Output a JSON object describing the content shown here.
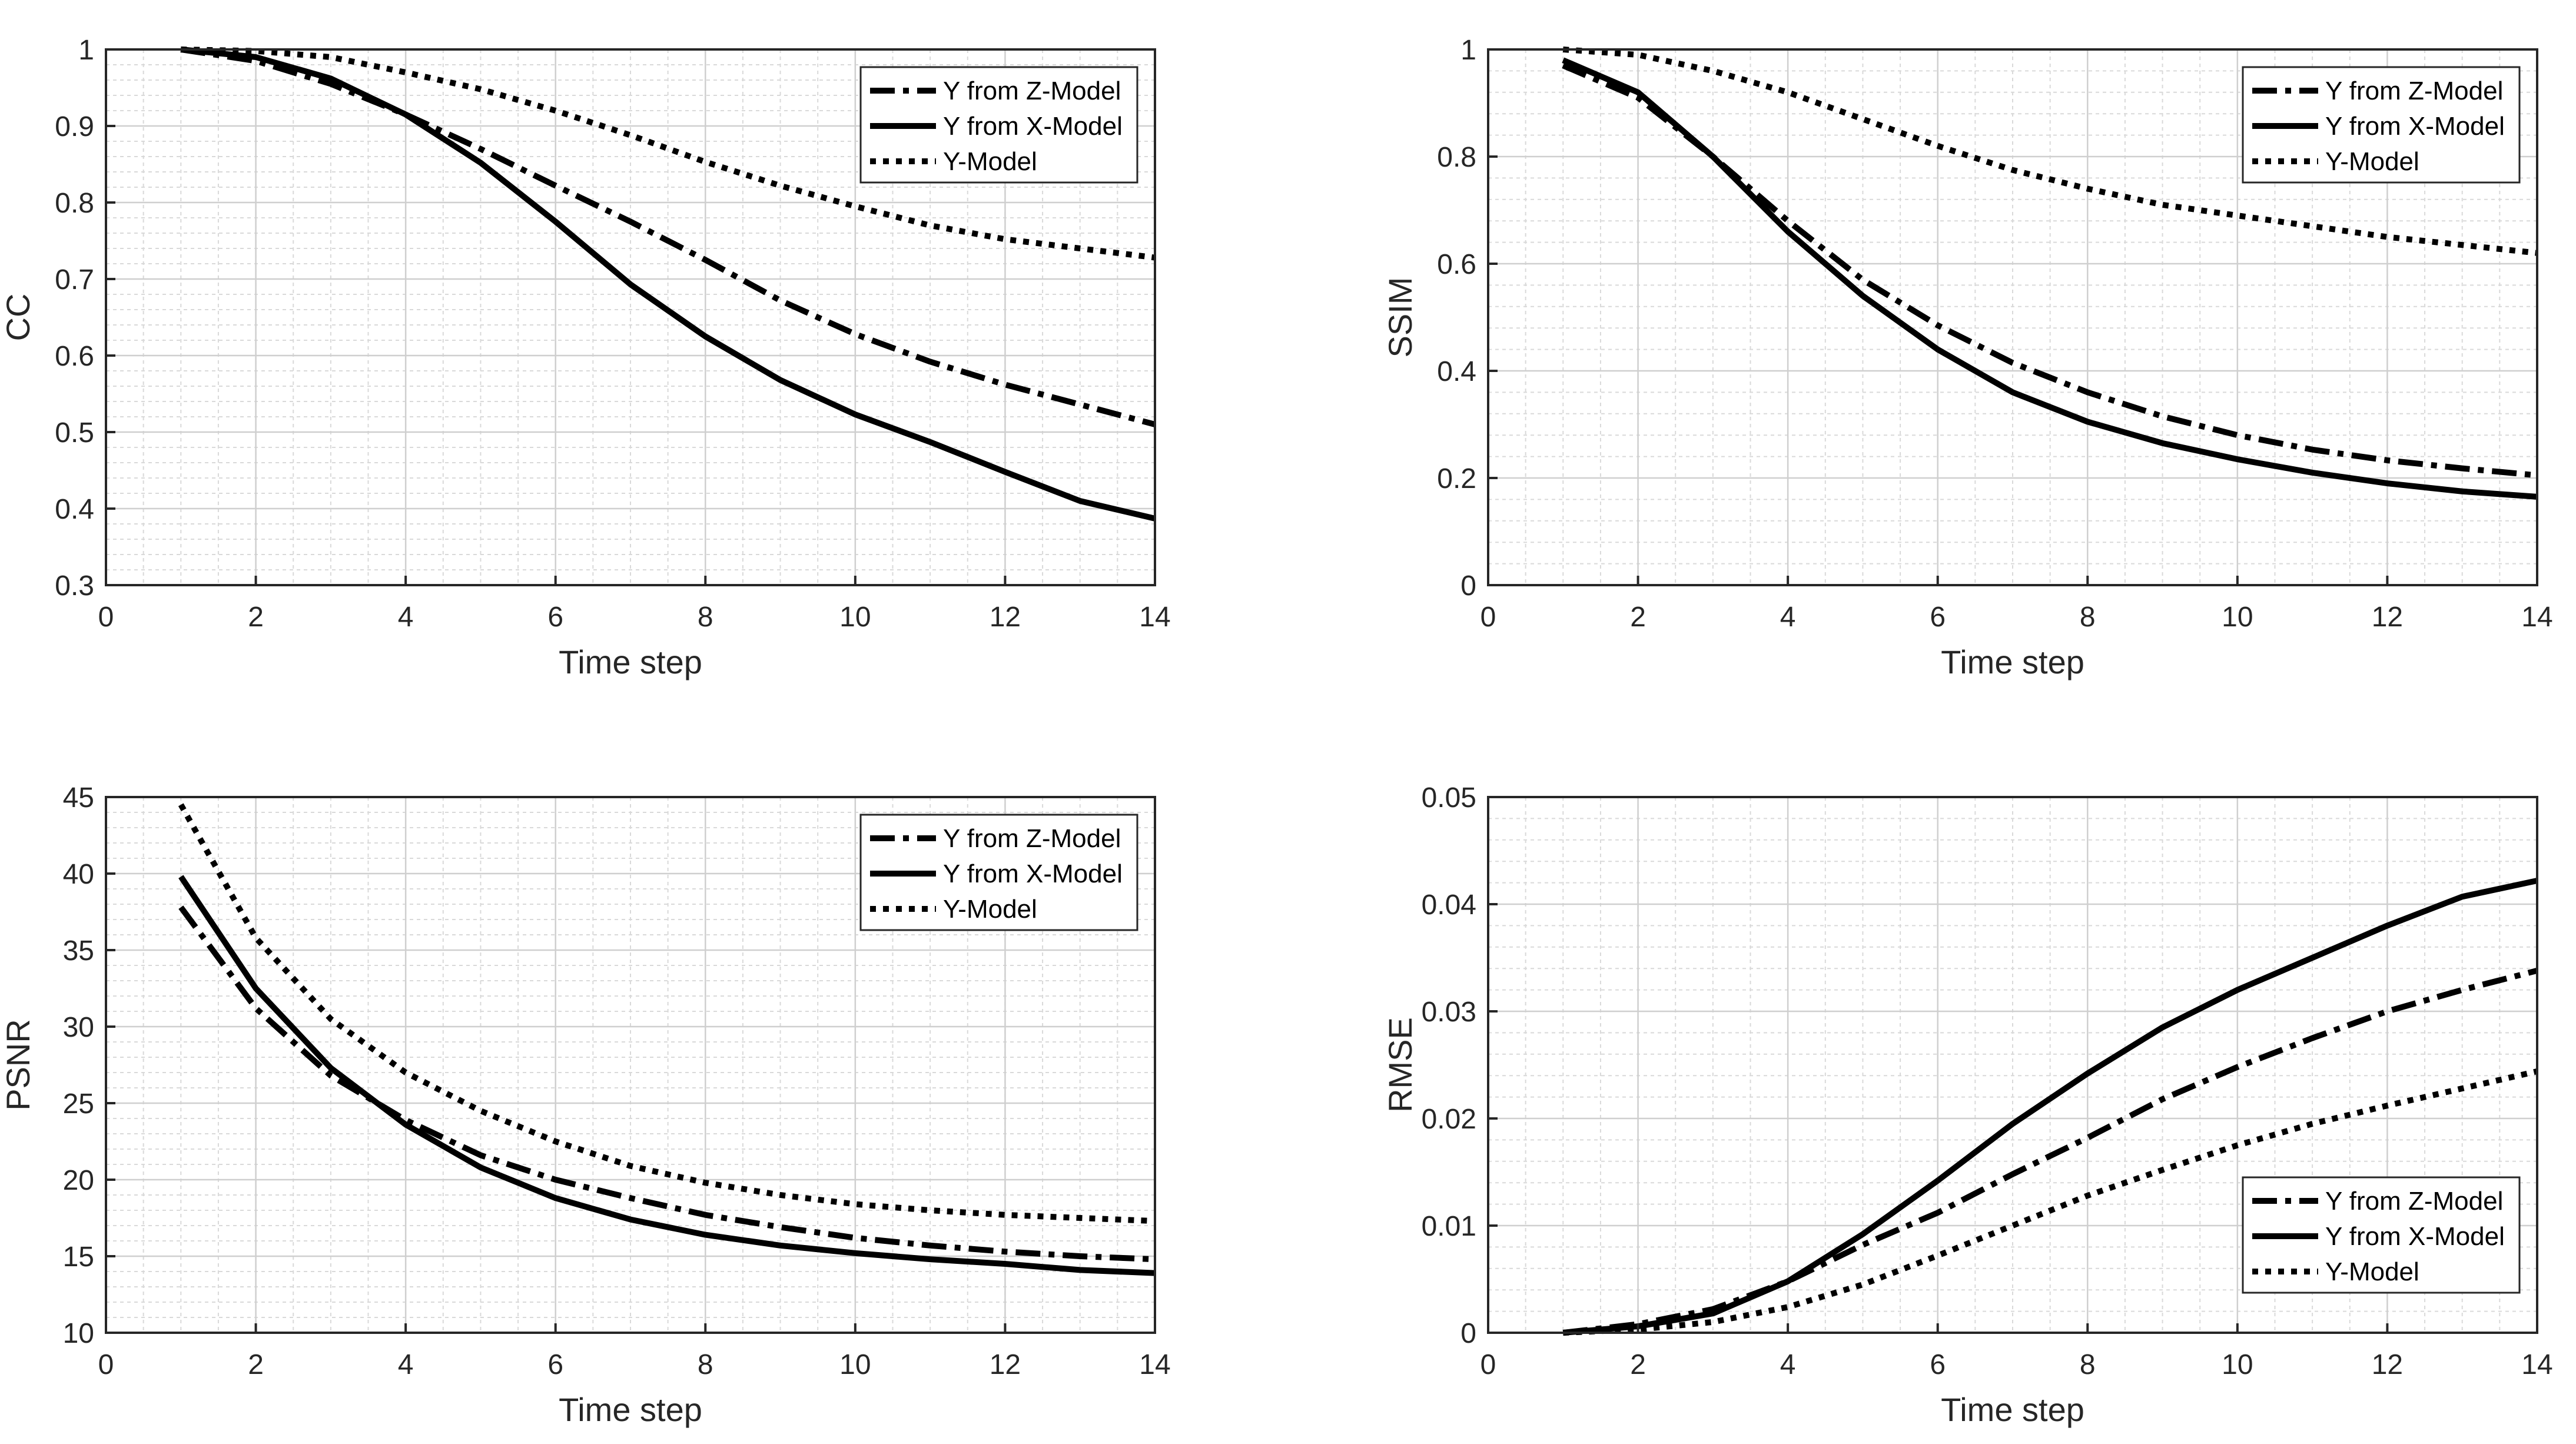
{
  "chart_data": [
    {
      "type": "line",
      "xlabel": "Time step",
      "ylabel": "CC",
      "xlim": [
        0,
        14
      ],
      "ylim": [
        0.3,
        1
      ],
      "xticks": [
        0,
        2,
        4,
        6,
        8,
        10,
        12,
        14
      ],
      "yticks": [
        0.3,
        0.4,
        0.5,
        0.6,
        0.7,
        0.8,
        0.9,
        1
      ],
      "ytick_labels": [
        "0.3",
        "0.4",
        "0.5",
        "0.6",
        "0.7",
        "0.8",
        "0.9",
        "1"
      ],
      "grid": true,
      "legend_position": "top-right",
      "x": [
        1,
        2,
        3,
        4,
        5,
        6,
        7,
        8,
        9,
        10,
        11,
        12,
        13,
        14
      ],
      "series": [
        {
          "name": "Y from Z-Model",
          "style": "dashdot",
          "values": [
            1.0,
            0.985,
            0.955,
            0.915,
            0.87,
            0.822,
            0.775,
            0.725,
            0.672,
            0.628,
            0.592,
            0.562,
            0.536,
            0.51
          ]
        },
        {
          "name": "Y from X-Model",
          "style": "solid",
          "values": [
            1.0,
            0.99,
            0.962,
            0.915,
            0.852,
            0.775,
            0.693,
            0.625,
            0.568,
            0.523,
            0.487,
            0.448,
            0.41,
            0.387
          ]
        },
        {
          "name": "Y-Model",
          "style": "dotted",
          "values": [
            1.0,
            0.998,
            0.99,
            0.97,
            0.948,
            0.92,
            0.888,
            0.853,
            0.822,
            0.795,
            0.77,
            0.752,
            0.74,
            0.728
          ]
        }
      ]
    },
    {
      "type": "line",
      "xlabel": "Time step",
      "ylabel": "SSIM",
      "xlim": [
        0,
        14
      ],
      "ylim": [
        0,
        1
      ],
      "xticks": [
        0,
        2,
        4,
        6,
        8,
        10,
        12,
        14
      ],
      "yticks": [
        0,
        0.2,
        0.4,
        0.6,
        0.8,
        1
      ],
      "ytick_labels": [
        "0",
        "0.2",
        "0.4",
        "0.6",
        "0.8",
        "1"
      ],
      "grid": true,
      "legend_position": "top-right",
      "x": [
        1,
        2,
        3,
        4,
        5,
        6,
        7,
        8,
        9,
        10,
        11,
        12,
        13,
        14
      ],
      "series": [
        {
          "name": "Y from Z-Model",
          "style": "dashdot",
          "values": [
            0.97,
            0.91,
            0.8,
            0.68,
            0.57,
            0.485,
            0.415,
            0.36,
            0.315,
            0.28,
            0.253,
            0.233,
            0.218,
            0.205
          ]
        },
        {
          "name": "Y from X-Model",
          "style": "solid",
          "values": [
            0.98,
            0.92,
            0.8,
            0.66,
            0.54,
            0.44,
            0.36,
            0.305,
            0.265,
            0.235,
            0.21,
            0.19,
            0.175,
            0.165
          ]
        },
        {
          "name": "Y-Model",
          "style": "dotted",
          "values": [
            1.0,
            0.99,
            0.96,
            0.92,
            0.87,
            0.82,
            0.775,
            0.74,
            0.71,
            0.69,
            0.67,
            0.65,
            0.635,
            0.62
          ]
        }
      ]
    },
    {
      "type": "line",
      "xlabel": "Time step",
      "ylabel": "PSNR",
      "xlim": [
        0,
        14
      ],
      "ylim": [
        10,
        45
      ],
      "xticks": [
        0,
        2,
        4,
        6,
        8,
        10,
        12,
        14
      ],
      "yticks": [
        10,
        15,
        20,
        25,
        30,
        35,
        40,
        45
      ],
      "ytick_labels": [
        "10",
        "15",
        "20",
        "25",
        "30",
        "35",
        "40",
        "45"
      ],
      "grid": true,
      "legend_position": "top-right",
      "x": [
        1,
        2,
        3,
        4,
        5,
        6,
        7,
        8,
        9,
        10,
        11,
        12,
        13,
        14
      ],
      "series": [
        {
          "name": "Y from Z-Model",
          "style": "dashdot",
          "values": [
            37.8,
            31.2,
            26.8,
            23.9,
            21.6,
            20.0,
            18.8,
            17.7,
            16.9,
            16.2,
            15.7,
            15.3,
            15.0,
            14.8
          ]
        },
        {
          "name": "Y from X-Model",
          "style": "solid",
          "values": [
            39.8,
            32.5,
            27.3,
            23.6,
            20.8,
            18.8,
            17.4,
            16.4,
            15.7,
            15.2,
            14.8,
            14.5,
            14.1,
            13.9
          ]
        },
        {
          "name": "Y-Model",
          "style": "dotted",
          "values": [
            44.5,
            35.8,
            30.5,
            27.0,
            24.5,
            22.5,
            20.9,
            19.8,
            19.0,
            18.4,
            18.0,
            17.7,
            17.5,
            17.3
          ]
        }
      ]
    },
    {
      "type": "line",
      "xlabel": "Time step",
      "ylabel": "RMSE",
      "xlim": [
        0,
        14
      ],
      "ylim": [
        0,
        0.05
      ],
      "xticks": [
        0,
        2,
        4,
        6,
        8,
        10,
        12,
        14
      ],
      "yticks": [
        0,
        0.01,
        0.02,
        0.03,
        0.04,
        0.05
      ],
      "ytick_labels": [
        "0",
        "0.01",
        "0.02",
        "0.03",
        "0.04",
        "0.05"
      ],
      "grid": true,
      "legend_position": "bottom-right",
      "x": [
        1,
        2,
        3,
        4,
        5,
        6,
        7,
        8,
        9,
        10,
        11,
        12,
        13,
        14
      ],
      "series": [
        {
          "name": "Y from Z-Model",
          "style": "dashdot",
          "values": [
            0.0,
            0.0008,
            0.0022,
            0.0048,
            0.0082,
            0.0112,
            0.0148,
            0.0182,
            0.0218,
            0.0248,
            0.0275,
            0.03,
            0.032,
            0.0338
          ]
        },
        {
          "name": "Y from X-Model",
          "style": "solid",
          "values": [
            0.0,
            0.0006,
            0.0018,
            0.0048,
            0.0092,
            0.0142,
            0.0195,
            0.0242,
            0.0285,
            0.032,
            0.035,
            0.038,
            0.0407,
            0.0422
          ]
        },
        {
          "name": "Y-Model",
          "style": "dotted",
          "values": [
            0.0,
            0.0003,
            0.001,
            0.0024,
            0.0045,
            0.0072,
            0.01,
            0.0128,
            0.0152,
            0.0175,
            0.0195,
            0.0212,
            0.0228,
            0.0244
          ]
        }
      ]
    }
  ]
}
